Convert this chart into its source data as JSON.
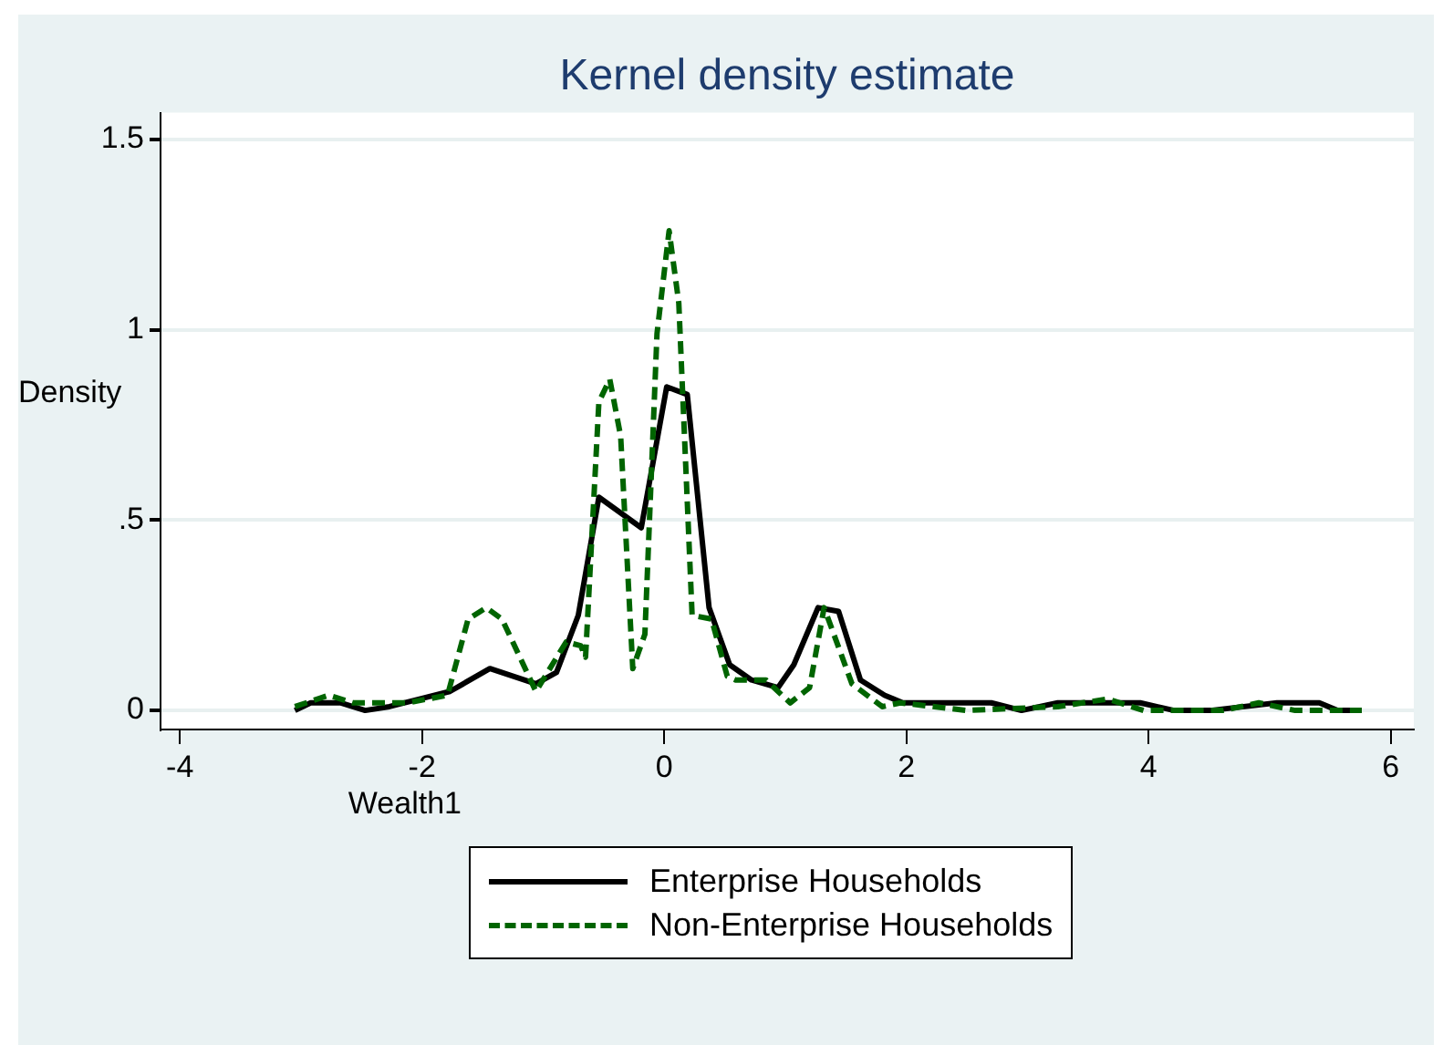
{
  "chart_data": {
    "type": "line",
    "title": "Kernel density estimate",
    "xlabel": "Wealth1",
    "ylabel": "Density",
    "xlim": [
      -4.16,
      6.19
    ],
    "xticks": [
      -4,
      -2,
      0,
      2,
      4,
      6
    ],
    "ylim": [
      -0.05,
      1.57
    ],
    "yticks": [
      0,
      {
        "value": 0.5,
        "label": ".5"
      },
      1,
      1.5
    ],
    "grid": "y",
    "legend": "bottom",
    "marker": "none",
    "series": [
      {
        "name": "Enterprise Households",
        "color": "#000000",
        "line_style": "solid",
        "x": [
          -3.05,
          -2.92,
          -2.67,
          -2.47,
          -2.27,
          -1.77,
          -1.44,
          -1.06,
          -0.89,
          -0.71,
          -0.54,
          -0.19,
          0.02,
          0.19,
          0.37,
          0.54,
          0.72,
          0.94,
          1.07,
          1.27,
          1.44,
          1.62,
          1.82,
          1.97,
          2.7,
          2.95,
          3.25,
          3.93,
          4.21,
          4.51,
          5.06,
          5.41,
          5.56,
          5.76
        ],
        "values": [
          0.0,
          0.02,
          0.02,
          0.0,
          0.01,
          0.05,
          0.11,
          0.07,
          0.1,
          0.25,
          0.56,
          0.48,
          0.85,
          0.83,
          0.27,
          0.12,
          0.08,
          0.06,
          0.12,
          0.27,
          0.26,
          0.08,
          0.04,
          0.02,
          0.02,
          0.0,
          0.02,
          0.02,
          0.0,
          0.0,
          0.02,
          0.02,
          0.0,
          0.0
        ]
      },
      {
        "name": "Non-Enterprise Households",
        "color": "#006400",
        "line_style": "dashed",
        "x": [
          -3.05,
          -2.77,
          -2.57,
          -2.12,
          -1.79,
          -1.62,
          -1.47,
          -1.34,
          -1.06,
          -0.81,
          -0.69,
          -0.65,
          -0.54,
          -0.45,
          -0.36,
          -0.26,
          -0.16,
          -0.06,
          0.04,
          0.12,
          0.23,
          0.39,
          0.52,
          0.59,
          0.84,
          1.04,
          1.2,
          1.32,
          1.55,
          1.8,
          1.95,
          2.5,
          3.25,
          3.66,
          3.96,
          4.61,
          4.91,
          5.21,
          5.76
        ],
        "values": [
          0.01,
          0.04,
          0.02,
          0.02,
          0.04,
          0.24,
          0.27,
          0.24,
          0.05,
          0.18,
          0.17,
          0.14,
          0.81,
          0.87,
          0.72,
          0.11,
          0.2,
          0.99,
          1.26,
          1.07,
          0.25,
          0.24,
          0.09,
          0.08,
          0.08,
          0.02,
          0.06,
          0.27,
          0.07,
          0.01,
          0.02,
          0.0,
          0.01,
          0.03,
          0.0,
          0.0,
          0.02,
          0.0,
          0.0
        ]
      }
    ]
  }
}
